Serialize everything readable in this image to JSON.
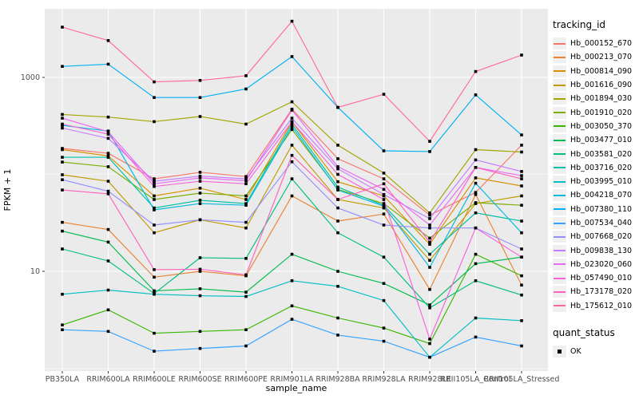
{
  "panel": {
    "bg_color": "#EBEBEB",
    "grid_color": "#FFFFFF",
    "tick_color": "#333333",
    "tick_label_color": "#4D4D4D",
    "point_color": "#000000"
  },
  "chart_data": {
    "type": "line",
    "title": "",
    "xlabel": "sample_name",
    "ylabel": "FPKM + 1",
    "y_scale": "log10",
    "y_major_ticks": [
      10,
      1000
    ],
    "y_minor_gridlines": [
      1,
      100
    ],
    "ylim": [
      1.02,
      4800
    ],
    "grid": true,
    "legend_position": "right",
    "categories": [
      "PB350LA",
      "RRIM600LA",
      "RRIM600LE",
      "RRIM600SE",
      "RRIM600PE",
      "RRIM901LA",
      "RRIM928BA",
      "RRIM928LA",
      "RRIM928LE",
      "RRII105LA_Control",
      "RRII105LA_Stressed"
    ],
    "series": [
      {
        "name": "Hb_000152_670",
        "color": "#F8766D",
        "values": [
          185,
          165,
          90,
          105,
          95,
          470,
          145,
          90,
          38,
          65,
          200
        ]
      },
      {
        "name": "Hb_000213_070",
        "color": "#EA8331",
        "values": [
          32,
          27,
          8.7,
          10,
          9,
          60,
          33,
          39,
          6.5,
          62,
          7.2
        ]
      },
      {
        "name": "Hb_000814_090",
        "color": "#D89000",
        "values": [
          180,
          155,
          60,
          72,
          55,
          350,
          84,
          60,
          19,
          92,
          76
        ]
      },
      {
        "name": "Hb_001616_090",
        "color": "#C09B00",
        "values": [
          99,
          85,
          25,
          34,
          28,
          200,
          55,
          45,
          13,
          50,
          60
        ]
      },
      {
        "name": "Hb_001894_030",
        "color": "#A3A500",
        "values": [
          415,
          390,
          350,
          395,
          330,
          560,
          200,
          103,
          40,
          180,
          170
        ]
      },
      {
        "name": "Hb_001910_020",
        "color": "#7CAE00",
        "values": [
          134,
          120,
          55,
          64,
          60,
          290,
          70,
          50,
          22,
          51,
          48
        ]
      },
      {
        "name": "Hb_003050_370",
        "color": "#39B600",
        "values": [
          2.8,
          4.0,
          2.3,
          2.4,
          2.5,
          4.4,
          3.3,
          2.6,
          1.8,
          15,
          9
        ]
      },
      {
        "name": "Hb_003477_010",
        "color": "#00BB4E",
        "values": [
          26,
          20,
          6.3,
          6.6,
          6.1,
          15,
          10,
          7.5,
          4.5,
          12,
          14
        ]
      },
      {
        "name": "Hb_003581_020",
        "color": "#00BF7D",
        "values": [
          17,
          12.8,
          5.9,
          13.8,
          13.6,
          90,
          25,
          14,
          4.2,
          8,
          5.7
        ]
      },
      {
        "name": "Hb_003716_020",
        "color": "#00C1A3",
        "values": [
          150,
          150,
          45,
          54,
          50,
          330,
          74,
          48,
          15,
          40,
          33
        ]
      },
      {
        "name": "Hb_003995_010",
        "color": "#00BFC4",
        "values": [
          5.8,
          6.4,
          5.8,
          5.6,
          5.5,
          8,
          7,
          5,
          1.3,
          3.3,
          3.1
        ]
      },
      {
        "name": "Hb_004218_070",
        "color": "#00BAE0",
        "values": [
          320,
          280,
          43,
          50,
          48,
          310,
          69,
          47,
          11,
          81,
          25
        ]
      },
      {
        "name": "Hb_007380_110",
        "color": "#00B0F6",
        "values": [
          1300,
          1370,
          620,
          620,
          760,
          1640,
          490,
          175,
          172,
          660,
          255
        ]
      },
      {
        "name": "Hb_007534_040",
        "color": "#35A2FF",
        "values": [
          2.5,
          2.4,
          1.5,
          1.6,
          1.7,
          3.2,
          2.2,
          1.9,
          1.3,
          2.1,
          1.7
        ]
      },
      {
        "name": "Hb_007668_020",
        "color": "#9590FF",
        "values": [
          88,
          67,
          30,
          34,
          32,
          135,
          45,
          30,
          28,
          28,
          17
        ]
      },
      {
        "name": "Hb_009838_130",
        "color": "#C77CFF",
        "values": [
          300,
          235,
          85,
          96,
          90,
          380,
          114,
          62,
          35,
          141,
          107
        ]
      },
      {
        "name": "Hb_023020_060",
        "color": "#E76BF3",
        "values": [
          380,
          275,
          80,
          92,
          86,
          460,
          120,
          70,
          30,
          118,
          97
        ]
      },
      {
        "name": "Hb_057490_010",
        "color": "#FA62DB",
        "values": [
          330,
          260,
          75,
          85,
          80,
          350,
          100,
          55,
          2.0,
          28,
          14
        ]
      },
      {
        "name": "Hb_173178_020",
        "color": "#FF62BC",
        "values": [
          69,
          63,
          10.4,
          10.5,
          9.2,
          157,
          55,
          80,
          20,
          118,
          90
        ]
      },
      {
        "name": "Hb_175612_010",
        "color": "#FF6A98",
        "values": [
          3300,
          2400,
          900,
          930,
          1040,
          3800,
          490,
          670,
          219,
          1150,
          1700
        ]
      }
    ]
  },
  "legend": {
    "tracking_title": "tracking_id",
    "quant_title": "quant_status",
    "quant_items": [
      {
        "label": "OK",
        "shape": "filled-square",
        "color": "#000000"
      }
    ]
  }
}
